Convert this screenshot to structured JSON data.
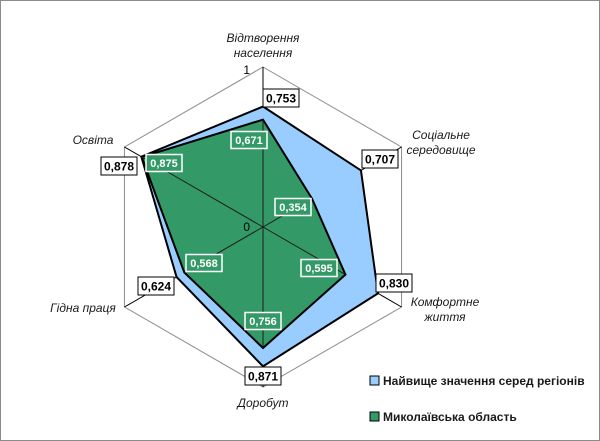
{
  "chart_data": {
    "type": "radar",
    "axes": [
      {
        "label": [
          "Відтворення",
          "населення"
        ]
      },
      {
        "label": [
          "Соціальне",
          "середовище"
        ]
      },
      {
        "label": [
          "Комфортне",
          "життя"
        ]
      },
      {
        "label": [
          "Доробут"
        ]
      },
      {
        "label": [
          "Гідна праця"
        ]
      },
      {
        "label": [
          "Освіта"
        ]
      }
    ],
    "categories": [
      "Відтворення населення",
      "Соціальне середовище",
      "Комфортне життя",
      "Доробут",
      "Гідна праця",
      "Освіта"
    ],
    "rlim": [
      0,
      1
    ],
    "tick_labels": [
      "0",
      "1"
    ],
    "grid": true,
    "legend_position": "bottom-right",
    "series": [
      {
        "name": "Найвище значення серед регіонів",
        "values": [
          0.753,
          0.707,
          0.83,
          0.871,
          0.624,
          0.878
        ],
        "labels": [
          "0,753",
          "0,707",
          "0,830",
          "0,871",
          "0,624",
          "0,878"
        ],
        "color": "#99ccff"
      },
      {
        "name": "Миколаївська область",
        "values": [
          0.671,
          0.354,
          0.595,
          0.756,
          0.568,
          0.875
        ],
        "labels": [
          "0,671",
          "0,354",
          "0,595",
          "0,756",
          "0,568",
          "0,875"
        ],
        "color": "#339966"
      }
    ]
  }
}
